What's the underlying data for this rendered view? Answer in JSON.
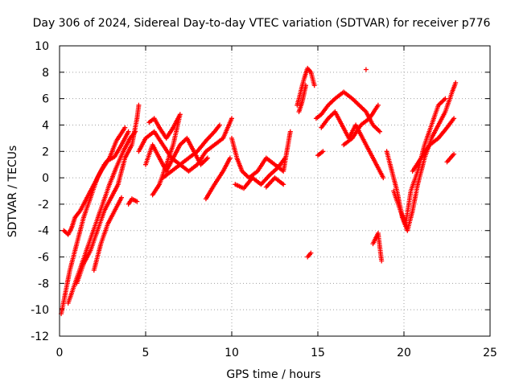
{
  "chart_data": {
    "type": "scatter",
    "title": "Day 306 of 2024, Sidereal Day-to-day VTEC variation (SDTVAR) for receiver p776",
    "xlabel": "GPS time / hours",
    "ylabel": "SDTVAR / TECUs",
    "xlim": [
      0,
      25
    ],
    "ylim": [
      -12,
      10
    ],
    "xticks": [
      "0",
      "5",
      "10",
      "15",
      "20",
      "25"
    ],
    "yticks": [
      "-12",
      "-10",
      "-8",
      "-6",
      "-4",
      "-2",
      "0",
      "2",
      "4",
      "6",
      "8",
      "10"
    ],
    "grid": true,
    "marker": "+",
    "color": "#ff0000",
    "series": [
      {
        "tracks": [
          [
            [
              0.25,
              -4.0
            ],
            [
              0.5,
              -4.3
            ],
            [
              0.7,
              -3.8
            ],
            [
              0.9,
              -3.0
            ],
            [
              1.2,
              -2.5
            ],
            [
              1.6,
              -1.5
            ],
            [
              2.0,
              -0.5
            ],
            [
              2.4,
              0.5
            ],
            [
              2.8,
              1.3
            ],
            [
              3.2,
              1.6
            ],
            [
              3.6,
              2.5
            ],
            [
              4.0,
              3.5
            ]
          ],
          [
            [
              0.1,
              -10.3
            ],
            [
              0.3,
              -9.0
            ],
            [
              0.6,
              -7.0
            ],
            [
              1.0,
              -5.0
            ],
            [
              1.4,
              -3.0
            ],
            [
              1.8,
              -1.5
            ],
            [
              2.2,
              0.0
            ],
            [
              2.6,
              1.0
            ],
            [
              2.9,
              1.5
            ],
            [
              3.3,
              2.8
            ],
            [
              3.8,
              3.8
            ]
          ],
          [
            [
              0.5,
              -9.5
            ],
            [
              0.9,
              -8.0
            ],
            [
              1.3,
              -6.5
            ],
            [
              1.7,
              -5.0
            ],
            [
              2.1,
              -3.5
            ],
            [
              2.5,
              -2.0
            ],
            [
              2.9,
              -0.5
            ],
            [
              3.3,
              0.8
            ],
            [
              3.7,
              2.0
            ],
            [
              4.1,
              3.0
            ],
            [
              4.4,
              3.5
            ]
          ],
          [
            [
              1.0,
              -8.0
            ],
            [
              1.4,
              -6.5
            ],
            [
              1.8,
              -5.5
            ],
            [
              2.2,
              -4.0
            ],
            [
              2.6,
              -2.5
            ],
            [
              3.0,
              -1.5
            ],
            [
              3.4,
              -0.5
            ],
            [
              3.8,
              1.5
            ],
            [
              4.2,
              2.5
            ],
            [
              4.5,
              4.5
            ],
            [
              4.6,
              5.5
            ]
          ],
          [
            [
              2.0,
              -7.0
            ],
            [
              2.4,
              -5.0
            ],
            [
              2.8,
              -3.5
            ],
            [
              3.2,
              -2.5
            ],
            [
              3.6,
              -1.5
            ]
          ],
          [
            [
              4.0,
              -2.0
            ],
            [
              4.2,
              -1.6
            ],
            [
              4.5,
              -1.8
            ]
          ],
          [
            [
              4.6,
              2.0
            ],
            [
              5.0,
              3.0
            ],
            [
              5.5,
              3.5
            ],
            [
              6.0,
              2.5
            ],
            [
              6.5,
              1.5
            ],
            [
              7.0,
              1.0
            ],
            [
              7.5,
              0.5
            ],
            [
              8.0,
              1.0
            ],
            [
              8.5,
              2.0
            ],
            [
              9.0,
              2.5
            ],
            [
              9.5,
              3.0
            ],
            [
              10.0,
              4.5
            ]
          ],
          [
            [
              5.0,
              1.0
            ],
            [
              5.4,
              2.5
            ],
            [
              5.8,
              1.5
            ],
            [
              6.2,
              0.5
            ],
            [
              6.6,
              1.5
            ],
            [
              7.0,
              2.5
            ],
            [
              7.4,
              3.0
            ],
            [
              7.8,
              2.0
            ],
            [
              8.2,
              1.0
            ],
            [
              8.6,
              1.5
            ]
          ],
          [
            [
              5.2,
              4.2
            ],
            [
              5.5,
              4.5
            ],
            [
              5.8,
              3.8
            ],
            [
              6.2,
              3.0
            ],
            [
              6.6,
              3.8
            ],
            [
              7.0,
              4.8
            ],
            [
              6.6,
              2.5
            ],
            [
              6.2,
              1.0
            ],
            [
              5.8,
              -0.5
            ],
            [
              5.4,
              -1.3
            ]
          ],
          [
            [
              6.0,
              0.0
            ],
            [
              6.5,
              0.5
            ],
            [
              7.0,
              1.0
            ],
            [
              7.5,
              1.5
            ],
            [
              8.0,
              2.0
            ],
            [
              8.5,
              2.8
            ],
            [
              9.0,
              3.5
            ],
            [
              9.3,
              4.0
            ]
          ],
          [
            [
              8.5,
              -1.6
            ],
            [
              9.0,
              -0.5
            ],
            [
              9.5,
              0.5
            ],
            [
              9.9,
              1.5
            ]
          ],
          [
            [
              10.0,
              3.0
            ],
            [
              10.3,
              1.5
            ],
            [
              10.6,
              0.5
            ],
            [
              11.0,
              0.0
            ],
            [
              11.5,
              0.5
            ],
            [
              12.0,
              1.5
            ],
            [
              12.5,
              1.0
            ],
            [
              13.0,
              0.5
            ],
            [
              13.2,
              2.0
            ],
            [
              13.4,
              3.5
            ]
          ],
          [
            [
              10.2,
              -0.5
            ],
            [
              10.7,
              -0.8
            ],
            [
              11.2,
              0.0
            ],
            [
              11.7,
              -0.5
            ],
            [
              12.2,
              0.2
            ],
            [
              12.7,
              0.8
            ],
            [
              13.1,
              1.5
            ]
          ],
          [
            [
              12.0,
              -0.7
            ],
            [
              12.5,
              0.0
            ],
            [
              13.0,
              -0.5
            ]
          ],
          [
            [
              13.8,
              5.5
            ],
            [
              14.0,
              6.5
            ],
            [
              14.2,
              7.5
            ],
            [
              14.4,
              8.3
            ],
            [
              14.6,
              8.0
            ],
            [
              14.8,
              7.0
            ]
          ],
          [
            [
              13.9,
              5.0
            ],
            [
              14.1,
              5.8
            ],
            [
              14.3,
              7.0
            ]
          ],
          [
            [
              14.4,
              -6.0
            ],
            [
              14.6,
              -5.7
            ]
          ],
          [
            [
              14.9,
              4.5
            ],
            [
              15.2,
              4.8
            ],
            [
              15.6,
              5.5
            ],
            [
              16.0,
              6.0
            ],
            [
              16.5,
              6.5
            ],
            [
              17.0,
              6.0
            ],
            [
              17.4,
              5.5
            ],
            [
              17.8,
              5.0
            ],
            [
              18.2,
              4.0
            ],
            [
              18.6,
              3.5
            ]
          ],
          [
            [
              15.2,
              3.8
            ],
            [
              15.6,
              4.5
            ],
            [
              16.0,
              5.0
            ],
            [
              16.4,
              4.0
            ],
            [
              16.8,
              3.0
            ],
            [
              17.2,
              4.0
            ],
            [
              17.6,
              3.0
            ],
            [
              18.0,
              2.0
            ],
            [
              18.4,
              1.0
            ],
            [
              18.8,
              0.0
            ]
          ],
          [
            [
              15.0,
              1.7
            ],
            [
              15.3,
              2.0
            ]
          ],
          [
            [
              16.5,
              2.5
            ],
            [
              17.0,
              3.0
            ],
            [
              17.5,
              4.0
            ],
            [
              18.0,
              4.5
            ],
            [
              18.5,
              5.5
            ]
          ],
          [
            [
              17.8,
              8.2
            ]
          ],
          [
            [
              18.2,
              -5.0
            ],
            [
              18.5,
              -4.2
            ],
            [
              18.7,
              -6.3
            ]
          ],
          [
            [
              19.0,
              2.0
            ],
            [
              19.3,
              0.5
            ],
            [
              19.6,
              -1.0
            ],
            [
              19.9,
              -3.0
            ],
            [
              20.2,
              -4.0
            ],
            [
              20.5,
              -2.5
            ],
            [
              20.8,
              -0.5
            ],
            [
              21.2,
              1.5
            ],
            [
              21.6,
              3.0
            ],
            [
              22.0,
              4.0
            ],
            [
              22.4,
              5.0
            ],
            [
              22.8,
              6.5
            ],
            [
              23.0,
              7.2
            ]
          ],
          [
            [
              19.4,
              -1.0
            ],
            [
              19.8,
              -2.5
            ],
            [
              20.1,
              -3.5
            ],
            [
              20.4,
              -1.0
            ],
            [
              20.8,
              0.5
            ],
            [
              21.2,
              2.5
            ],
            [
              21.6,
              4.0
            ],
            [
              22.0,
              5.5
            ],
            [
              22.4,
              6.0
            ]
          ],
          [
            [
              20.5,
              0.5
            ],
            [
              21.0,
              1.5
            ],
            [
              21.5,
              2.5
            ],
            [
              22.0,
              3.0
            ],
            [
              22.5,
              3.8
            ],
            [
              22.9,
              4.5
            ]
          ],
          [
            [
              22.5,
              1.2
            ],
            [
              22.7,
              1.5
            ],
            [
              22.9,
              1.8
            ]
          ]
        ]
      }
    ]
  }
}
